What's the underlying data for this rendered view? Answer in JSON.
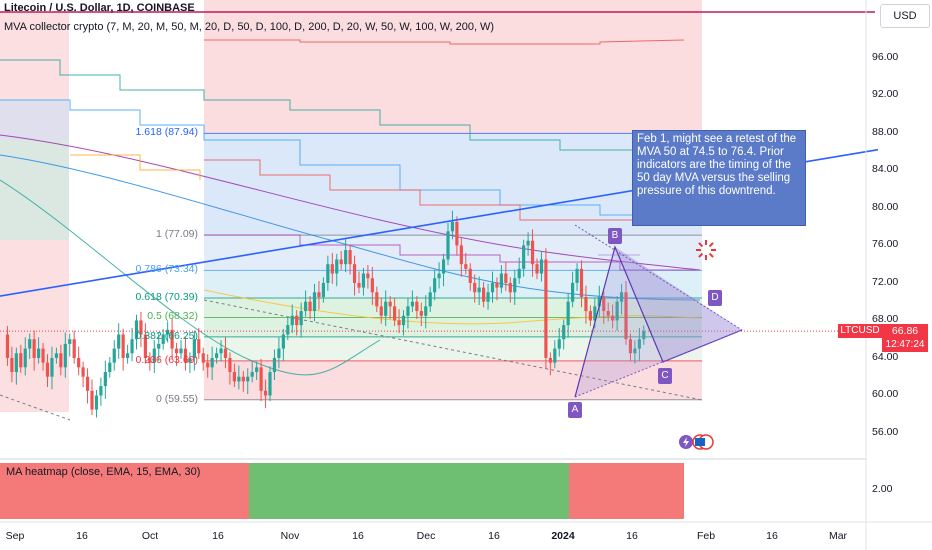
{
  "header": {
    "title": "Litecoin / U.S. Dollar, 1D, COINBASE",
    "indicator": "MVA collector crypto (7, M, 20, M, 50, M, 20, D, 50, D, 100, D, 200, D, 20, W, 50, W, 100, W, 200, W)",
    "currency": "USD"
  },
  "annotation": {
    "text": "Feb 1, might see a retest of the MVA 50 at 74.5 to  76.4. Prior indicators are the timing of the 50 day MVA versus the selling pressure of this downtrend."
  },
  "price_label": {
    "symbol": "LTCUSD",
    "value": "66.86",
    "countdown": "12:47:24"
  },
  "subpane": {
    "label": "MA heatmap (close, EMA, 15, EMA, 30)",
    "tick": "2.00"
  },
  "fib_labels": [
    {
      "text": "1.618 (87.94)",
      "color": "#2962ff"
    },
    {
      "text": "1 (77.09)",
      "color": "#787b86"
    },
    {
      "text": "0.786 (73.34)",
      "color": "#4a9ff5"
    },
    {
      "text": "0.618 (70.39)",
      "color": "#089981"
    },
    {
      "text": "0.5 (68.32)",
      "color": "#4caf50"
    },
    {
      "text": "0.382 (66.25)",
      "color": "#089981"
    },
    {
      "text": "0.236 (63.69)",
      "color": "#f23645"
    },
    {
      "text": "0 (59.55)",
      "color": "#787b86"
    }
  ],
  "pattern_points": [
    "A",
    "B",
    "C",
    "D"
  ],
  "colors": {
    "up": "#26a69a",
    "down": "#ef5350",
    "fib_red": "#f8c5c9",
    "fib_blue": "#cfe0f7",
    "fib_green": "#d6efd9",
    "heat_red": "#f47a7a",
    "heat_green": "#6fbf73",
    "trend": "#2962ff"
  },
  "icons": [
    "lightning-icon",
    "us-flag-icon",
    "alert-burst-icon"
  ],
  "chart_data": {
    "type": "candlestick",
    "symbol": "LTCUSD",
    "interval": "1D",
    "yaxis": {
      "ticks": [
        56,
        60,
        64,
        68,
        72,
        76,
        80,
        84,
        88,
        92,
        96
      ],
      "tick_labels": [
        "56.00",
        "60.00",
        "64.00",
        "68.00",
        "72.00",
        "76.00",
        "80.00",
        "84.00",
        "88.00",
        "92.00",
        "96.00"
      ],
      "scale": "linear"
    },
    "xaxis": {
      "tick_labels": [
        "Sep",
        "16",
        "Oct",
        "16",
        "Nov",
        "16",
        "Dec",
        "16",
        "2024",
        "16",
        "Feb",
        "16",
        "Mar"
      ]
    },
    "last_price": 66.86,
    "fibonacci": [
      {
        "level": 1.618,
        "price": 87.94
      },
      {
        "level": 1,
        "price": 77.09
      },
      {
        "level": 0.786,
        "price": 73.34
      },
      {
        "level": 0.618,
        "price": 70.39
      },
      {
        "level": 0.5,
        "price": 68.32
      },
      {
        "level": 0.382,
        "price": 66.25
      },
      {
        "level": 0.236,
        "price": 63.69
      },
      {
        "level": 0,
        "price": 59.55
      }
    ],
    "ohlc_approx": [
      66.5,
      64.0,
      62.5,
      64.5,
      63.0,
      65.0,
      66.0,
      64.0,
      65.0,
      63.5,
      62.0,
      64.0,
      64.5,
      63.0,
      65.5,
      66.0,
      64.0,
      63.0,
      62.0,
      60.5,
      58.5,
      60.0,
      61.0,
      62.5,
      63.5,
      65.0,
      66.5,
      64.0,
      64.5,
      66.0,
      68.0,
      66.5,
      64.0,
      63.5,
      65.0,
      65.5,
      66.5,
      67.0,
      65.0,
      64.5,
      65.0,
      63.5,
      64.0,
      66.0,
      64.5,
      63.5,
      63.0,
      64.0,
      64.5,
      65.0,
      64.0,
      62.5,
      61.5,
      62.0,
      61.5,
      62.0,
      62.5,
      63.0,
      60.5,
      60.0,
      62.5,
      64.0,
      65.0,
      66.5,
      67.5,
      68.5,
      67.5,
      69.0,
      70.0,
      69.0,
      71.0,
      70.5,
      72.0,
      74.0,
      73.0,
      74.5,
      74.0,
      75.5,
      74.0,
      72.0,
      71.5,
      73.0,
      72.5,
      71.0,
      69.5,
      68.5,
      70.0,
      69.5,
      68.0,
      67.5,
      68.5,
      69.5,
      70.0,
      69.0,
      68.5,
      69.5,
      71.0,
      72.5,
      73.0,
      74.5,
      77.5,
      78.5,
      76.0,
      74.0,
      73.5,
      72.0,
      71.0,
      71.5,
      70.0,
      71.0,
      72.0,
      71.5,
      73.0,
      72.0,
      71.0,
      72.5,
      73.5,
      76.0,
      76.5,
      74.0,
      73.0,
      74.5,
      64.0,
      63.5,
      65.0,
      66.0,
      67.5,
      70.0,
      72.0,
      73.5,
      70.5,
      69.0,
      68.0,
      69.5,
      70.5,
      69.0,
      68.5,
      68.0,
      70.0,
      71.0,
      66.0,
      64.5,
      65.0,
      66.0,
      66.86
    ]
  }
}
